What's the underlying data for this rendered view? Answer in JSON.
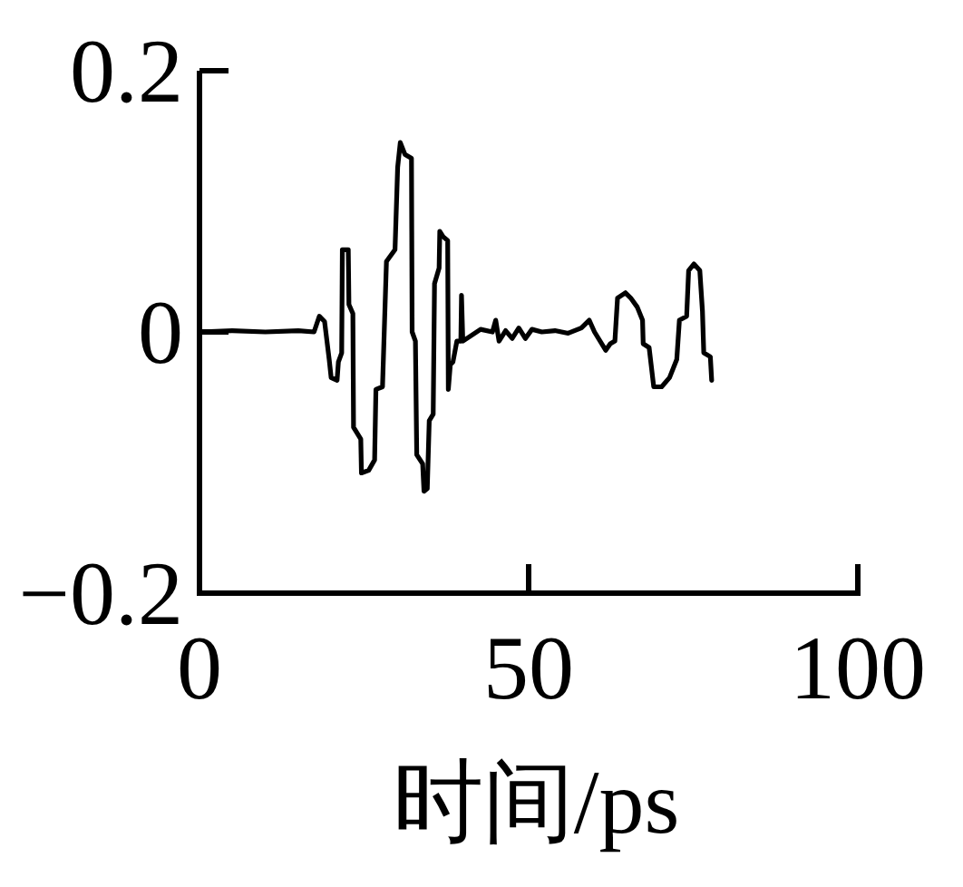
{
  "chart_data": {
    "type": "line",
    "xlabel": "时间/ps",
    "color": "#000000",
    "x": [
      0,
      5,
      10,
      15,
      17.4,
      18.2,
      19,
      19.7,
      20,
      20.9,
      21.1,
      21.6,
      21.7,
      22.6,
      22.7,
      23.3,
      23.4,
      24.5,
      24.6,
      25.7,
      26.6,
      26.8,
      27.8,
      28.4,
      29.7,
      30.1,
      30.5,
      31.2,
      32.2,
      32.3,
      32.8,
      33,
      33.9,
      34.1,
      34.6,
      34.9,
      35.5,
      35.7,
      36.4,
      36.5,
      37,
      37.7,
      37.8,
      38.1,
      38.5,
      39.1,
      39.7,
      39.8,
      40,
      41.2,
      42.7,
      44.5,
      45,
      45.5,
      46.5,
      47.5,
      48.5,
      49.5,
      50.5,
      52,
      54,
      56,
      58,
      59.2,
      60,
      61.7,
      62.4,
      63.1,
      63.5,
      64.7,
      65.5,
      66.5,
      67.3,
      67.4,
      68.3,
      69,
      70.2,
      71.4,
      72.5,
      72.9,
      74,
      74.3,
      75.1,
      76,
      76.4,
      76.6,
      77.6,
      77.8
    ],
    "values": [
      0,
      0.001,
      0,
      0.001,
      0,
      0.012,
      0.008,
      -0.021,
      -0.035,
      -0.037,
      -0.023,
      -0.016,
      0.063,
      0.063,
      0.021,
      0.014,
      -0.073,
      -0.082,
      -0.108,
      -0.106,
      -0.098,
      -0.044,
      -0.042,
      0.054,
      0.063,
      0.126,
      0.145,
      0.136,
      0.133,
      0,
      -0.007,
      -0.094,
      -0.101,
      -0.122,
      -0.12,
      -0.068,
      -0.063,
      0.037,
      0.049,
      0.077,
      0.073,
      0.07,
      -0.044,
      -0.025,
      -0.023,
      -0.007,
      -0.007,
      0.028,
      -0.007,
      -0.003,
      0.002,
      0,
      0.009,
      -0.007,
      0.001,
      -0.005,
      0.003,
      -0.005,
      0.002,
      0,
      0.001,
      -0.001,
      0.003,
      0.009,
      0,
      -0.014,
      -0.009,
      -0.007,
      0.026,
      0.03,
      0.026,
      0.019,
      0.009,
      -0.009,
      -0.012,
      -0.042,
      -0.042,
      -0.035,
      -0.021,
      0.009,
      0.012,
      0.047,
      0.052,
      0.047,
      0.016,
      -0.016,
      -0.019,
      -0.037
    ],
    "xlim": [
      0,
      100
    ],
    "ylim": [
      -0.2,
      0.2
    ],
    "xticks": [
      0,
      50,
      100
    ],
    "yticks": [
      {
        "value": -0.2,
        "label": "−0.2"
      },
      0,
      0.2
    ]
  }
}
